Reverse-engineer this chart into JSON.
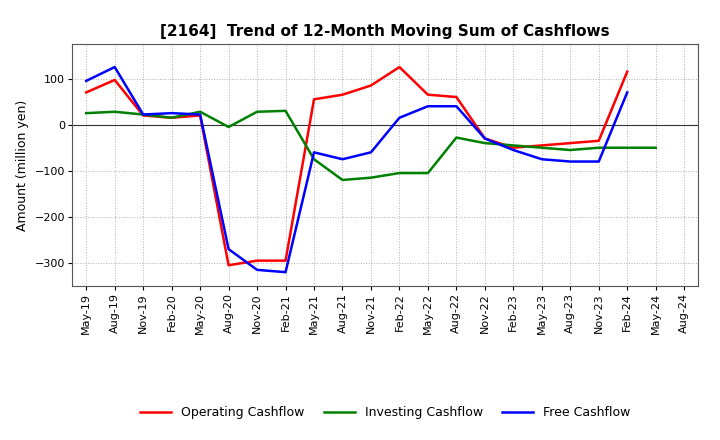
{
  "title": "[2164]  Trend of 12-Month Moving Sum of Cashflows",
  "ylabel": "Amount (million yen)",
  "x_labels": [
    "May-19",
    "Aug-19",
    "Nov-19",
    "Feb-20",
    "May-20",
    "Aug-20",
    "Nov-20",
    "Feb-21",
    "May-21",
    "Aug-21",
    "Nov-21",
    "Feb-22",
    "May-22",
    "Aug-22",
    "Nov-22",
    "Feb-23",
    "May-23",
    "Aug-23",
    "Nov-23",
    "Feb-24",
    "May-24",
    "Aug-24"
  ],
  "operating": [
    70,
    97,
    20,
    15,
    20,
    -305,
    -295,
    -295,
    55,
    65,
    85,
    125,
    65,
    60,
    -30,
    -50,
    -45,
    -40,
    -35,
    115,
    null,
    null
  ],
  "investing": [
    25,
    28,
    22,
    15,
    28,
    -5,
    28,
    30,
    -75,
    -120,
    -115,
    -105,
    -105,
    -28,
    -40,
    -45,
    -50,
    -55,
    -50,
    -50,
    -50,
    null
  ],
  "free": [
    95,
    125,
    22,
    25,
    22,
    -270,
    -315,
    -320,
    -60,
    -75,
    -60,
    15,
    40,
    40,
    -30,
    -55,
    -75,
    -80,
    -80,
    70,
    null,
    null
  ],
  "operating_color": "#ff0000",
  "investing_color": "#008000",
  "free_color": "#0000ff",
  "ylim": [
    -350,
    175
  ],
  "yticks": [
    -300,
    -200,
    -100,
    0,
    100
  ],
  "bg_color": "#ffffff",
  "grid_color": "#b0b0b0",
  "title_fontsize": 11,
  "axis_label_fontsize": 9,
  "tick_fontsize": 8,
  "legend_labels": [
    "Operating Cashflow",
    "Investing Cashflow",
    "Free Cashflow"
  ],
  "linewidth": 1.8
}
